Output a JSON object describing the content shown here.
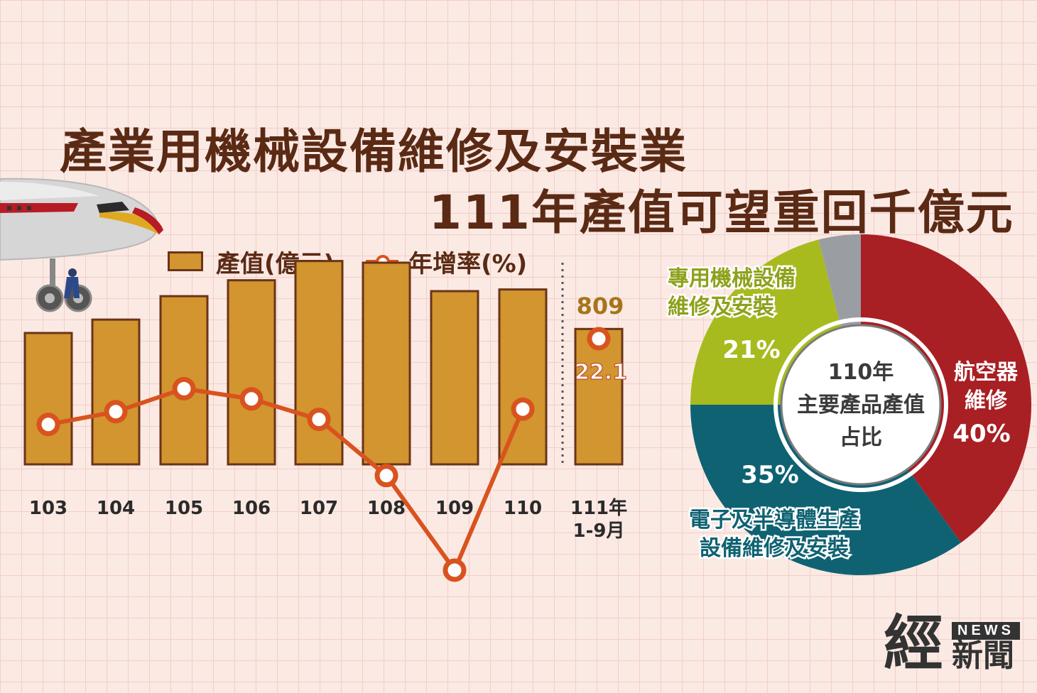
{
  "title": {
    "line1": "產業用機械設備維修及安裝業",
    "line2": "111年產值可望重回千億元"
  },
  "legend": {
    "bar": "產值(億元)",
    "line": "年增率(%)"
  },
  "chart_data": [
    {
      "type": "bar",
      "categories": [
        "103",
        "104",
        "105",
        "106",
        "107",
        "108",
        "109",
        "110",
        "111年\n1-9月"
      ],
      "series": [
        {
          "name": "產值(億元)",
          "values": [
            785,
            865,
            1005,
            1100,
            1215,
            1205,
            1035,
            1045,
            809
          ]
        },
        {
          "name": "年增率(%)",
          "values": [
            2,
            7,
            16,
            12,
            4,
            -18,
            -55,
            8,
            22.1
          ]
        }
      ],
      "value_labels": {
        "8": {
          "bar": "809",
          "line": "22.1"
        }
      },
      "colors": {
        "bar": "#d2952f",
        "bar_border": "#6a3418",
        "line": "#d9531e"
      }
    },
    {
      "type": "pie",
      "center_label": [
        "110年",
        "主要產品產值",
        "占比"
      ],
      "slices": [
        {
          "name": "航空器維修",
          "name_lines": [
            "航空器",
            "維修"
          ],
          "value": 40,
          "label": "40%",
          "color": "#a81f24"
        },
        {
          "name": "電子及半導體生產設備維修及安裝",
          "name_lines": [
            "電子及半導體生產",
            "設備維修及安裝"
          ],
          "value": 35,
          "label": "35%",
          "color": "#0f6272"
        },
        {
          "name": "專用機械設備維修及安裝",
          "name_lines": [
            "專用機械設備",
            "維修及安裝"
          ],
          "value": 21,
          "label": "21%",
          "color": "#a7bb1e"
        },
        {
          "name": "",
          "value": 4,
          "label": "",
          "color": "#9a9ea3"
        }
      ]
    }
  ],
  "logo": {
    "big": "經",
    "news": "NEWS",
    "sub": "新聞"
  }
}
